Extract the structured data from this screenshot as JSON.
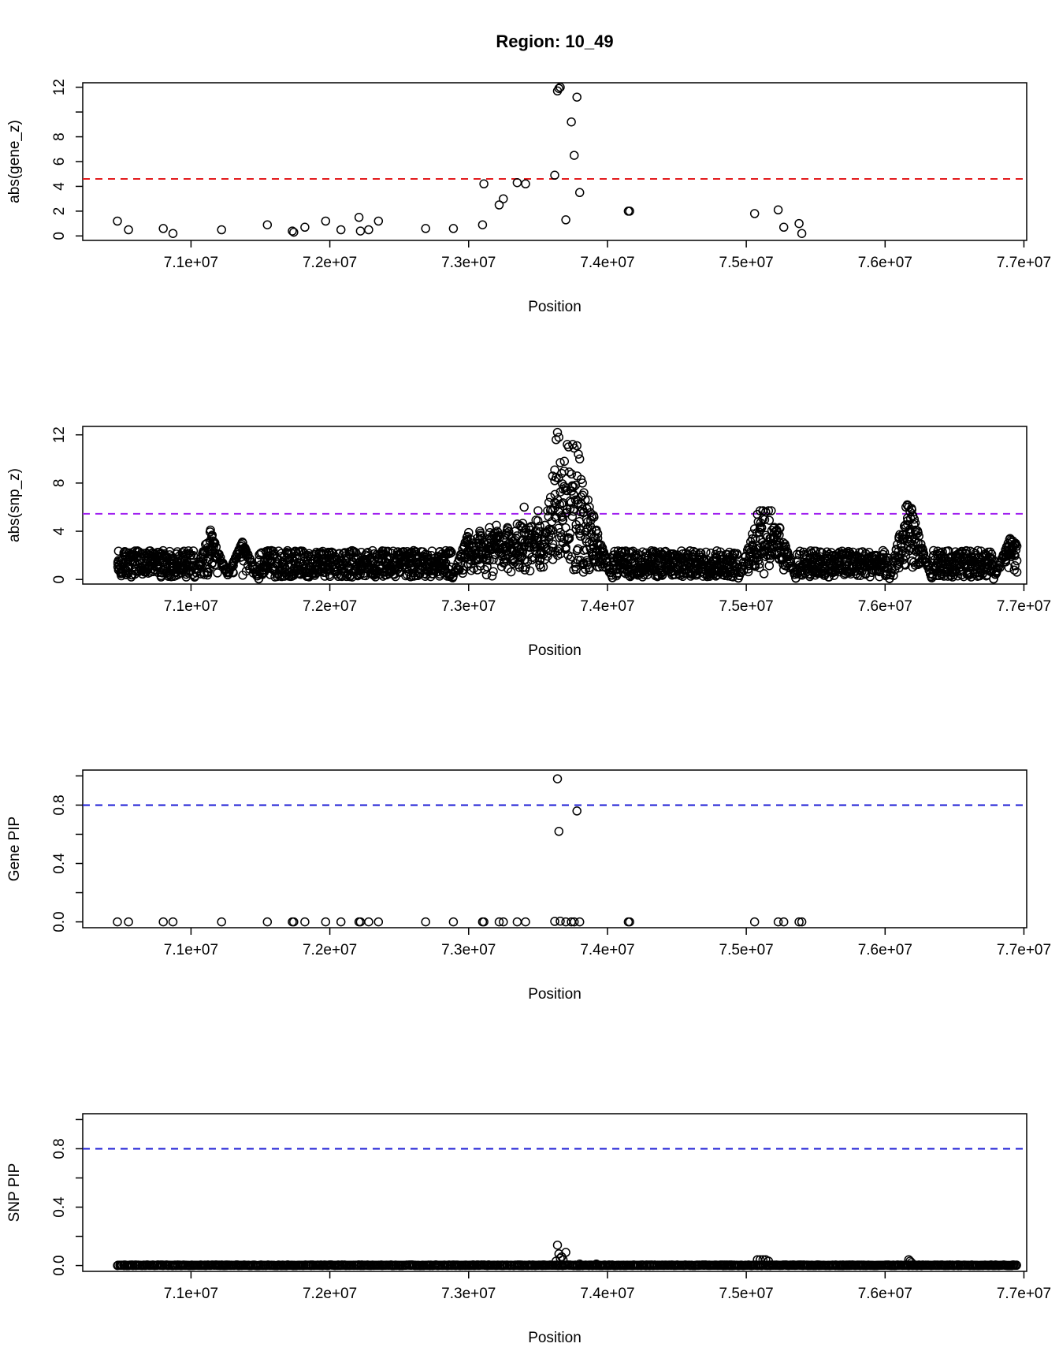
{
  "chart_data": {
    "type": "scatter",
    "title": "Region: 10_49",
    "xlim": [
      70220000,
      77020000
    ],
    "x_ticks": [
      71000000,
      72000000,
      73000000,
      74000000,
      75000000,
      76000000,
      77000000
    ],
    "x_tick_labels": [
      "7.1e+07",
      "7.2e+07",
      "7.3e+07",
      "7.4e+07",
      "7.5e+07",
      "7.6e+07",
      "7.7e+07"
    ],
    "grid": false,
    "legend": "none",
    "panels": [
      {
        "id": "gene_z",
        "xlabel": "Position",
        "ylabel": "abs(gene_z)",
        "ylim": [
          -0.36,
          12.36
        ],
        "y_ticks": [
          0,
          2,
          4,
          6,
          8,
          10,
          12
        ],
        "y_tick_labels": [
          "0",
          "2",
          "4",
          "6",
          "8",
          "",
          "12"
        ],
        "threshold": {
          "value": 4.6,
          "color": "#e31a1c"
        },
        "series": [
          {
            "x": [
              70470000,
              70550000,
              70800000,
              70870000,
              71220000,
              71550000,
              71730000,
              71740000,
              71820000,
              71970000,
              72080000,
              72210000,
              72220000,
              72280000,
              72350000,
              72690000,
              72890000,
              73100000,
              73110000,
              73220000,
              73250000,
              73350000,
              73410000,
              73620000,
              73640000,
              73650000,
              73660000,
              73700000,
              73740000,
              73760000,
              73780000,
              73800000,
              74150000,
              74160000,
              75060000,
              75230000,
              75270000,
              75380000,
              75400000
            ],
            "y": [
              1.2,
              0.5,
              0.6,
              0.2,
              0.5,
              0.9,
              0.4,
              0.3,
              0.7,
              1.2,
              0.5,
              1.5,
              0.4,
              0.5,
              1.2,
              0.6,
              0.6,
              0.9,
              4.2,
              2.5,
              3.0,
              4.3,
              4.2,
              4.9,
              11.7,
              11.9,
              12.0,
              1.3,
              9.2,
              6.5,
              11.2,
              3.5,
              2.0,
              2.0,
              1.8,
              2.1,
              0.7,
              1.0,
              0.2
            ]
          }
        ]
      },
      {
        "id": "snp_z",
        "xlabel": "Position",
        "ylabel": "abs(snp_z)",
        "ylim": [
          -0.38,
          12.7
        ],
        "y_ticks": [
          0,
          4,
          8,
          12
        ],
        "y_tick_labels": [
          "0",
          "4",
          "8",
          "12"
        ],
        "threshold": {
          "value": 5.45,
          "color": "#a020f0"
        },
        "series": [
          {
            "x_range": [
              70470000,
              76950000
            ],
            "x": [
              71140000,
              71150000,
              71160000,
              71370000,
              73000000,
              73080000,
              73150000,
              73200000,
              73280000,
              73350000,
              73380000,
              73400000,
              73450000,
              73500000,
              73550000,
              73600000,
              73620000,
              73630000,
              73640000,
              73650000,
              73660000,
              73670000,
              73680000,
              73690000,
              73700000,
              73710000,
              73720000,
              73730000,
              73740000,
              73750000,
              73760000,
              73770000,
              73780000,
              73790000,
              73800000,
              73810000,
              73820000,
              73830000,
              73840000,
              73850000,
              73860000,
              73870000,
              73880000,
              73900000,
              73920000,
              75060000,
              75080000,
              75100000,
              75120000,
              75140000,
              75160000,
              75180000,
              75200000,
              75220000,
              75240000,
              76150000,
              76160000,
              76170000,
              76180000,
              76190000,
              76200000,
              76210000,
              76220000,
              76900000,
              76920000,
              76940000
            ],
            "y": [
              4.1,
              3.6,
              3.2,
              3.1,
              3.9,
              4.0,
              4.3,
              4.5,
              4.3,
              4.6,
              4.4,
              6.0,
              4.4,
              5.7,
              4.5,
              4.8,
              8.2,
              11.6,
              12.2,
              11.8,
              9.7,
              8.8,
              7.5,
              9.8,
              5.5,
              11.2,
              11.0,
              6.5,
              6.4,
              11.2,
              10.9,
              6.6,
              11.1,
              10.4,
              10.0,
              8.3,
              8.0,
              7.2,
              6.6,
              5.0,
              6.6,
              6.0,
              4.9,
              5.3,
              4.1,
              4.2,
              5.4,
              5.7,
              5.7,
              5.6,
              5.7,
              5.7,
              4.3,
              4.1,
              4.3,
              6.0,
              6.2,
              6.0,
              5.6,
              5.9,
              5.3,
              5.0,
              4.1,
              3.4,
              3.2,
              3.0
            ]
          }
        ]
      },
      {
        "id": "gene_pip",
        "xlabel": "Position",
        "ylabel": "Gene PIP",
        "ylim": [
          -0.04,
          1.04
        ],
        "y_ticks": [
          0.0,
          0.2,
          0.4,
          0.6,
          0.8,
          1.0
        ],
        "y_tick_labels": [
          "0.0",
          "",
          "0.4",
          "",
          "0.8",
          ""
        ],
        "threshold": {
          "value": 0.8,
          "color": "#1c1cd6"
        },
        "series": [
          {
            "x": [
              70470000,
              70550000,
              70800000,
              70870000,
              71220000,
              71550000,
              71730000,
              71740000,
              71820000,
              71970000,
              72080000,
              72210000,
              72220000,
              72280000,
              72350000,
              72690000,
              72890000,
              73100000,
              73110000,
              73220000,
              73250000,
              73350000,
              73410000,
              73620000,
              73640000,
              73650000,
              73660000,
              73700000,
              73740000,
              73760000,
              73780000,
              73800000,
              74150000,
              74160000,
              75060000,
              75230000,
              75270000,
              75380000,
              75400000
            ],
            "y": [
              0,
              0,
              0,
              0,
              0,
              0,
              0,
              0,
              0,
              0,
              0,
              0,
              0,
              0,
              0,
              0,
              0,
              0,
              0,
              0,
              0,
              0,
              0,
              0.003,
              0.98,
              0.62,
              0.005,
              0,
              0,
              0,
              0.76,
              0,
              0,
              0,
              0,
              0,
              0,
              0,
              0
            ]
          }
        ]
      },
      {
        "id": "snp_pip",
        "xlabel": "Position",
        "ylabel": "SNP PIP",
        "ylim": [
          -0.04,
          1.04
        ],
        "y_ticks": [
          0.0,
          0.2,
          0.4,
          0.6,
          0.8,
          1.0
        ],
        "y_tick_labels": [
          "0.0",
          "",
          "0.4",
          "",
          "0.8",
          ""
        ],
        "threshold": {
          "value": 0.8,
          "color": "#1c1cd6"
        },
        "series": [
          {
            "x_range": [
              70470000,
              76950000
            ],
            "x": [
              73630000,
              73640000,
              73650000,
              73660000,
              73670000,
              73680000,
              73700000,
              73800000,
              73920000,
              75080000,
              75100000,
              75120000,
              75140000,
              75160000,
              76170000,
              76180000,
              76190000
            ],
            "y": [
              0.03,
              0.14,
              0.08,
              0.05,
              0.06,
              0.04,
              0.09,
              0.01,
              0.01,
              0.04,
              0.04,
              0.04,
              0.04,
              0.03,
              0.04,
              0.03,
              0.02
            ]
          }
        ]
      }
    ]
  }
}
